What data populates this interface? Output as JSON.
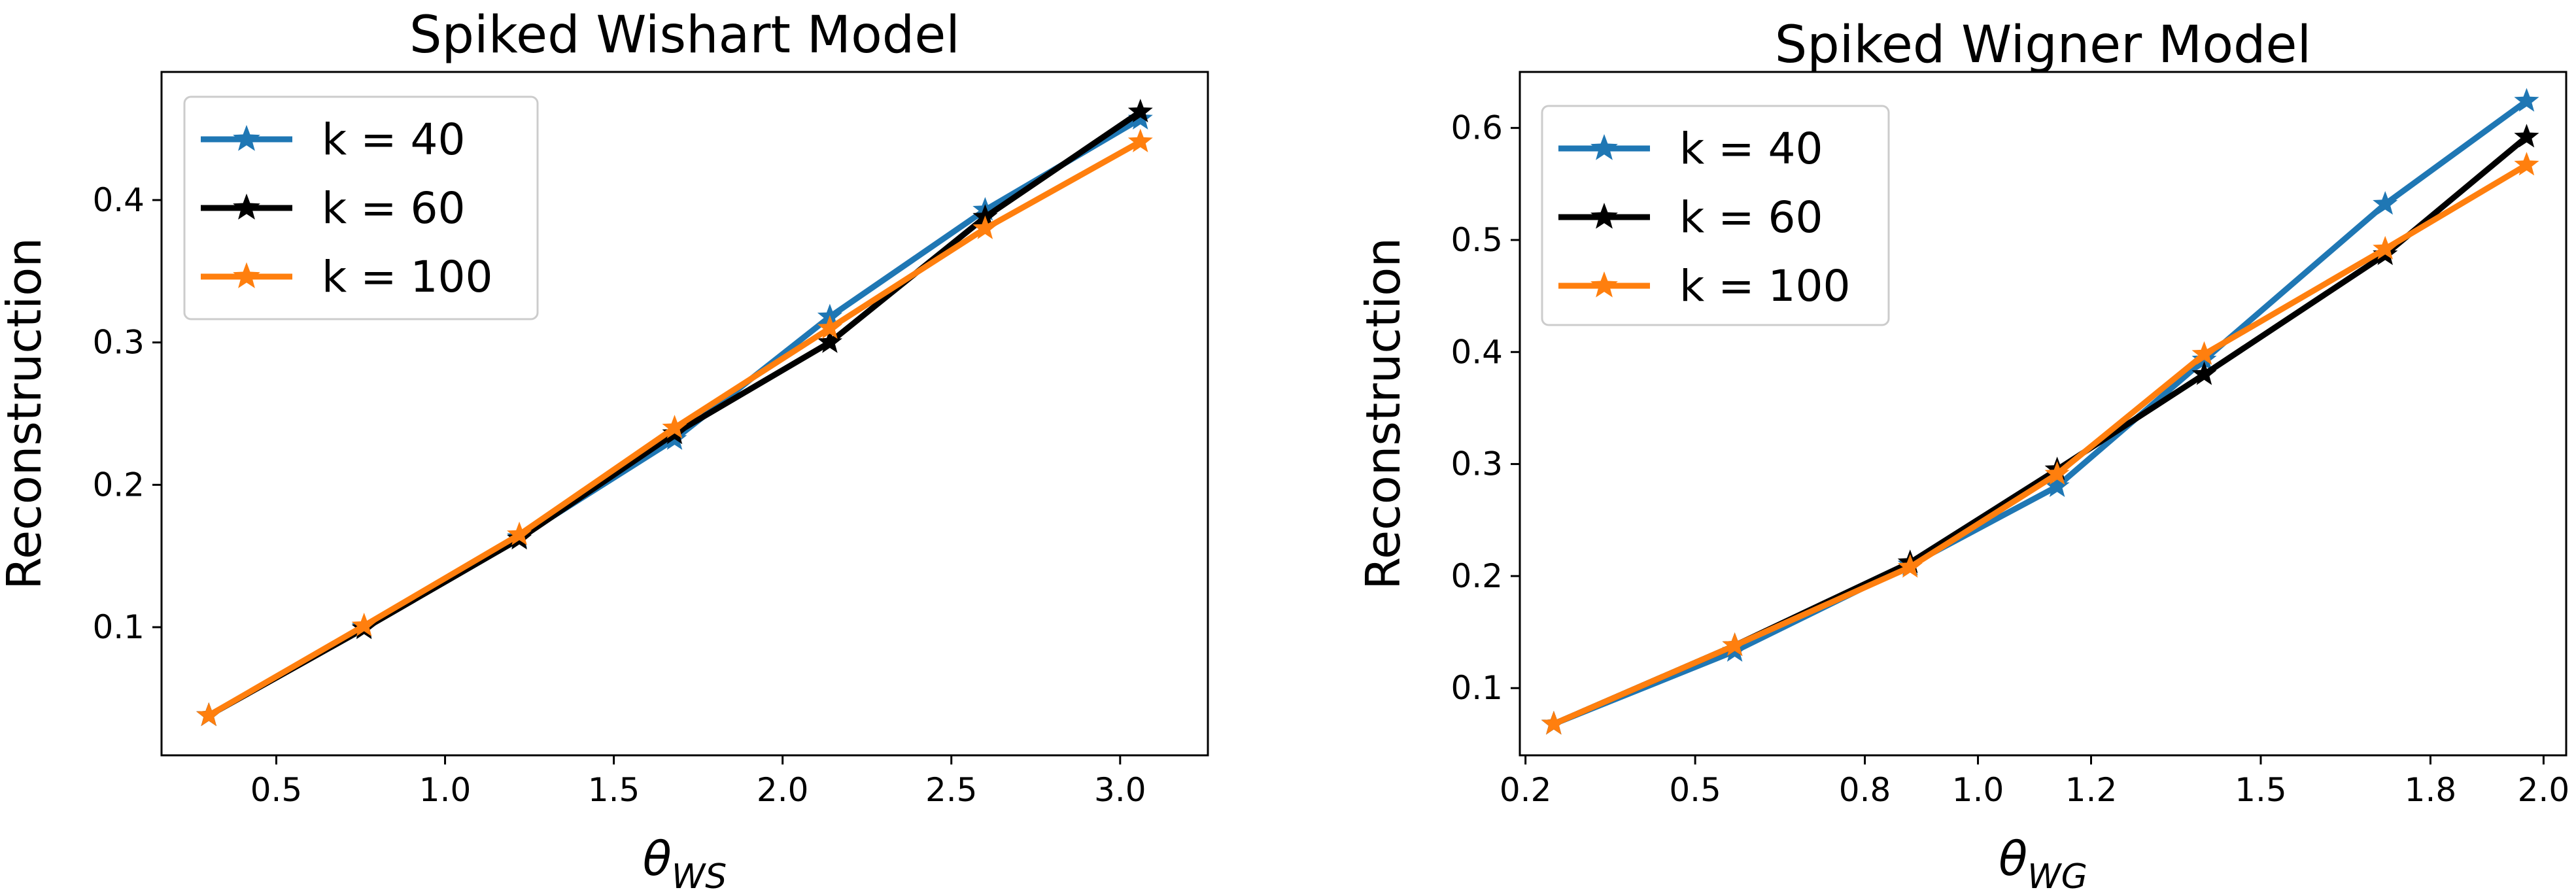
{
  "chart_data": [
    {
      "type": "line",
      "title": "Spiked Wishart Model",
      "xlabel_symbol": "θ",
      "xlabel_subscript": "WS",
      "ylabel": "Reconstruction",
      "xlim": [
        0.16,
        3.26
      ],
      "ylim": [
        0.01,
        0.49
      ],
      "xticks": [
        0.5,
        1.0,
        1.5,
        2.0,
        2.5,
        3.0
      ],
      "xtick_labels": [
        "0.5",
        "1.0",
        "1.5",
        "2.0",
        "2.5",
        "3.0"
      ],
      "yticks": [
        0.1,
        0.2,
        0.3,
        0.4
      ],
      "ytick_labels": [
        "0.1",
        "0.2",
        "0.3",
        "0.4"
      ],
      "legend_position": "upper-left",
      "x": [
        0.3,
        0.76,
        1.22,
        1.68,
        2.14,
        2.6,
        3.06
      ],
      "series": [
        {
          "name": "k = 40",
          "label": "k = 40",
          "color": "#1f77b4",
          "values": [
            0.038,
            0.1,
            0.163,
            0.232,
            0.318,
            0.393,
            0.457
          ]
        },
        {
          "name": "k = 60",
          "label": "k = 60",
          "color": "#000000",
          "values": [
            0.038,
            0.099,
            0.162,
            0.236,
            0.3,
            0.388,
            0.462
          ]
        },
        {
          "name": "k = 100",
          "label": "k = 100",
          "color": "#ff7f0e",
          "values": [
            0.038,
            0.101,
            0.165,
            0.24,
            0.31,
            0.38,
            0.441
          ]
        }
      ]
    },
    {
      "type": "line",
      "title": "Spiked Wigner Model",
      "xlabel_symbol": "θ",
      "xlabel_subscript": "WG",
      "ylabel": "Reconstruction",
      "xlim": [
        0.19,
        2.04
      ],
      "ylim": [
        0.04,
        0.65
      ],
      "xticks": [
        0.2,
        0.5,
        0.8,
        1.0,
        1.2,
        1.5,
        1.8,
        2.0
      ],
      "tick_positions_note": "tick labels as printed",
      "xtick_labels": [
        "0.2",
        "0.5",
        "0.8",
        "1.0",
        "1.2",
        "1.5",
        "1.8",
        "2.0"
      ],
      "yticks": [
        0.1,
        0.2,
        0.3,
        0.4,
        0.5,
        0.6
      ],
      "ytick_labels": [
        "0.1",
        "0.2",
        "0.3",
        "0.4",
        "0.5",
        "0.6"
      ],
      "legend_position": "upper-left",
      "x": [
        0.25,
        0.57,
        0.88,
        1.14,
        1.4,
        1.72,
        1.97
      ],
      "series": [
        {
          "name": "k = 40",
          "label": "k = 40",
          "color": "#1f77b4",
          "values": [
            0.068,
            0.133,
            0.21,
            0.28,
            0.393,
            0.532,
            0.624
          ]
        },
        {
          "name": "k = 60",
          "label": "k = 60",
          "color": "#000000",
          "values": [
            0.068,
            0.138,
            0.212,
            0.295,
            0.38,
            0.487,
            0.592
          ]
        },
        {
          "name": "k = 100",
          "label": "k = 100",
          "color": "#ff7f0e",
          "values": [
            0.068,
            0.138,
            0.208,
            0.291,
            0.398,
            0.492,
            0.567
          ]
        }
      ]
    }
  ]
}
